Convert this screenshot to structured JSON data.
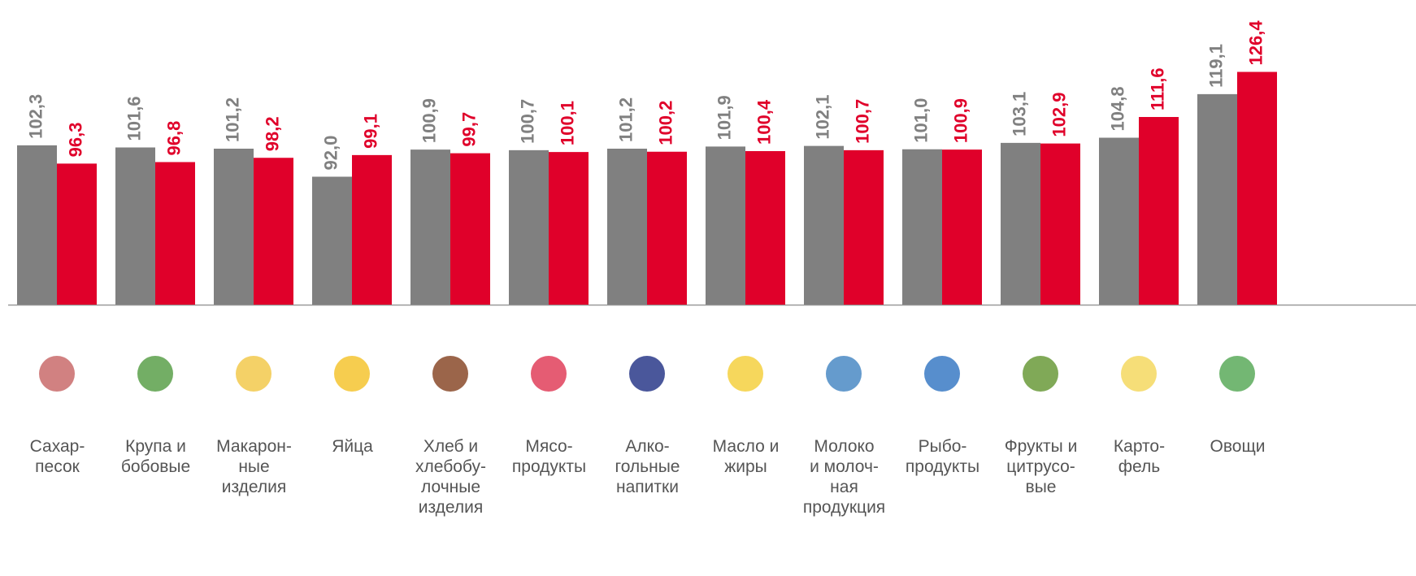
{
  "chart_data": {
    "type": "bar",
    "categories": [
      "Сахар-\nпесок",
      "Крупа и\nбобовые",
      "Макарон-\nные\nизделия",
      "Яйца",
      "Хлеб и\nхлебобу-\nлочные\nизделия",
      "Мясо-\nпродукты",
      "Алко-\nгольные\nнапитки",
      "Масло и\nжиры",
      "Молоко\nи молоч-\nная\nпродукция",
      "Рыбо-\nпродукты",
      "Фрукты и\nцитрусо-\nвые",
      "Карто-\nфель",
      "Овощи"
    ],
    "series": [
      {
        "color": "#808080",
        "values": [
          102.3,
          101.6,
          101.2,
          92.0,
          100.9,
          100.7,
          101.2,
          101.9,
          102.1,
          101.0,
          103.1,
          104.8,
          119.1
        ],
        "value_labels": [
          "102,3",
          "101,6",
          "101,2",
          "92,0",
          "100,9",
          "100,7",
          "101,2",
          "101,9",
          "102,1",
          "101,0",
          "103,1",
          "104,8",
          "119,1"
        ]
      },
      {
        "color": "#e0002a",
        "values": [
          96.3,
          96.8,
          98.2,
          99.1,
          99.7,
          100.1,
          100.2,
          100.4,
          100.7,
          100.9,
          102.9,
          111.6,
          126.4
        ],
        "value_labels": [
          "96,3",
          "96,8",
          "98,2",
          "99,1",
          "99,7",
          "100,1",
          "100,2",
          "100,4",
          "100,7",
          "100,9",
          "102,9",
          "111,6",
          "126,4"
        ]
      }
    ],
    "ylim": [
      50,
      130
    ]
  }
}
